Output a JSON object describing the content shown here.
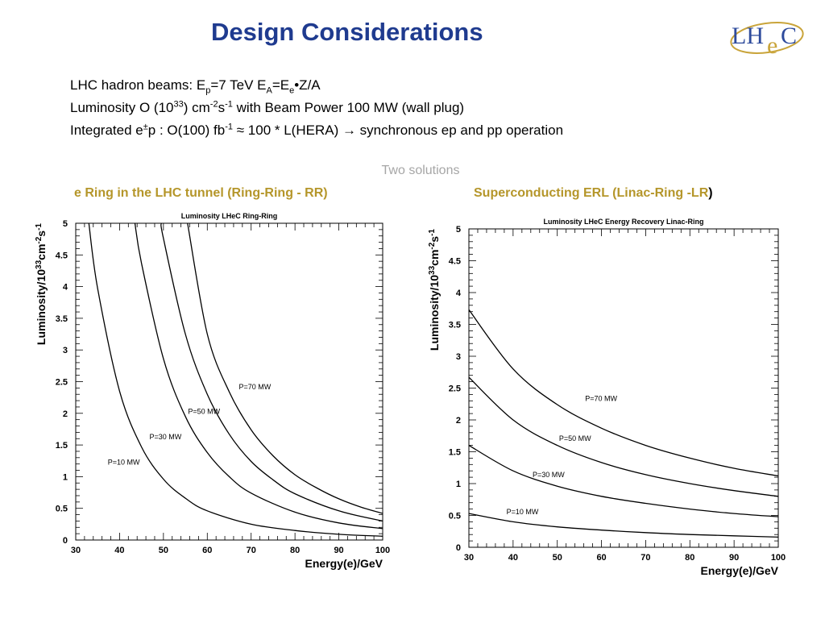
{
  "slide": {
    "title": "Design Considerations",
    "logo_text": {
      "l": "LH",
      "e": "e",
      "c": "C"
    },
    "line1": {
      "a": "LHC hadron beams: E",
      "a_sub": "p",
      "b": "=7 TeV   E",
      "b_sub": "A",
      "c": "=E",
      "c_sub": "e",
      "d": "•Z/A"
    },
    "line2": {
      "a": "Luminosity O (10",
      "a_sup": "33",
      "b": ") cm",
      "b_sup": "-2",
      "c": "s",
      "c_sup": "-1",
      "d": "  with Beam Power 100 MW (wall plug)"
    },
    "line3": {
      "a": "Integrated e",
      "a_sup": "±",
      "b": "p : O(100) fb",
      "b_sup": "-1",
      "c": " ≈ 100 * L(HERA) ",
      "arrow": "→",
      "d": " synchronous ep and pp operation"
    },
    "two_solutions": "Two solutions",
    "left_subtitle": "e Ring in the LHC tunnel (Ring-Ring - RR)",
    "right_subtitle": "Superconducting ERL (Linac-Ring -LR",
    "right_subtitle_paren": ")"
  },
  "colors": {
    "title": "#1f3b8f",
    "subtitle": "#b5962a",
    "muted": "#a6a6a6",
    "logo": "#2e4b9c",
    "logo_gold": "#c9a43a"
  },
  "chart_data": [
    {
      "type": "line",
      "title": "Luminosity  LHeC Ring-Ring",
      "xlabel": "Energy(e)/GeV",
      "ylabel": "Luminosity/10^33cm^-2s^-1",
      "xlim": [
        30,
        100
      ],
      "ylim": [
        0,
        5
      ],
      "xticks": [
        30,
        40,
        50,
        60,
        70,
        80,
        90,
        100
      ],
      "yticks": [
        0,
        0.5,
        1,
        1.5,
        2,
        2.5,
        3,
        3.5,
        4,
        4.5,
        5
      ],
      "grid": false,
      "series": [
        {
          "name": "P=10 MW",
          "x": [
            33,
            35,
            40,
            45,
            50,
            55,
            60,
            70,
            80,
            90,
            100
          ],
          "y": [
            5.0,
            3.97,
            2.35,
            1.47,
            0.96,
            0.66,
            0.46,
            0.25,
            0.15,
            0.09,
            0.06
          ]
        },
        {
          "name": "P=30 MW",
          "x": [
            43.5,
            45,
            50,
            55,
            60,
            65,
            70,
            80,
            90,
            100
          ],
          "y": [
            5.0,
            4.37,
            2.86,
            1.95,
            1.38,
            1.0,
            0.74,
            0.44,
            0.27,
            0.18
          ]
        },
        {
          "name": "P=50 MW",
          "x": [
            49.5,
            50,
            55,
            60,
            65,
            70,
            75,
            80,
            90,
            100
          ],
          "y": [
            5.0,
            4.76,
            3.25,
            2.3,
            1.67,
            1.24,
            0.95,
            0.73,
            0.46,
            0.3
          ]
        },
        {
          "name": "P=70 MW",
          "x": [
            55.5,
            60,
            65,
            70,
            75,
            80,
            85,
            90,
            95,
            100
          ],
          "y": [
            5.0,
            3.25,
            2.34,
            1.74,
            1.33,
            1.03,
            0.82,
            0.65,
            0.52,
            0.42
          ]
        }
      ]
    },
    {
      "type": "line",
      "title": "Luminosity  LHeC Energy Recovery Linac-Ring",
      "xlabel": "Energy(e)/GeV",
      "ylabel": "Luminosity/10^33cm^-2s^-1",
      "xlim": [
        30,
        100
      ],
      "ylim": [
        0,
        5
      ],
      "xticks": [
        30,
        40,
        50,
        60,
        70,
        80,
        90,
        100
      ],
      "yticks": [
        0,
        0.5,
        1,
        1.5,
        2,
        2.5,
        3,
        3.5,
        4,
        4.5,
        5
      ],
      "grid": false,
      "series": [
        {
          "name": "P=10 MW",
          "x": [
            30,
            40,
            50,
            60,
            70,
            80,
            90,
            100
          ],
          "y": [
            0.53,
            0.4,
            0.32,
            0.27,
            0.23,
            0.2,
            0.18,
            0.16
          ]
        },
        {
          "name": "P=30 MW",
          "x": [
            30,
            40,
            50,
            60,
            70,
            80,
            90,
            100
          ],
          "y": [
            1.6,
            1.2,
            0.96,
            0.8,
            0.69,
            0.6,
            0.53,
            0.48
          ]
        },
        {
          "name": "P=50 MW",
          "x": [
            30,
            40,
            50,
            60,
            70,
            80,
            90,
            100
          ],
          "y": [
            2.67,
            2.0,
            1.6,
            1.33,
            1.14,
            1.0,
            0.89,
            0.8
          ]
        },
        {
          "name": "P=70 MW",
          "x": [
            30,
            40,
            50,
            60,
            70,
            80,
            90,
            100
          ],
          "y": [
            3.73,
            2.8,
            2.24,
            1.87,
            1.6,
            1.4,
            1.24,
            1.12
          ]
        }
      ]
    }
  ]
}
